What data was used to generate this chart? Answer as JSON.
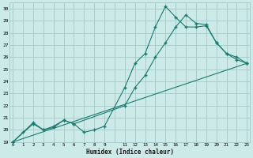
{
  "xlabel": "Humidex (Indice chaleur)",
  "bg_color": "#cceae8",
  "grid_color": "#aacccc",
  "line_color": "#1a7a6e",
  "series": [
    {
      "x": [
        0,
        1,
        2,
        3,
        4,
        5,
        6,
        7,
        8,
        9,
        11,
        12,
        13,
        14,
        15,
        16,
        17,
        18,
        19,
        20,
        21,
        22,
        23
      ],
      "y": [
        19,
        19.8,
        20.6,
        20.0,
        20.2,
        20.8,
        20.5,
        19.8,
        20.0,
        20.3,
        23.5,
        25.5,
        26.3,
        28.5,
        30.2,
        29.3,
        28.5,
        28.5,
        28.6,
        27.2,
        26.3,
        25.8,
        25.5
      ]
    },
    {
      "x": [
        0,
        2,
        3,
        4,
        5,
        6,
        11,
        12,
        13,
        14,
        15,
        16,
        17,
        18,
        19,
        20,
        21,
        22,
        23
      ],
      "y": [
        19,
        20.5,
        20.0,
        20.3,
        20.8,
        20.5,
        22.0,
        23.5,
        24.5,
        26.0,
        27.2,
        28.5,
        29.5,
        28.8,
        28.7,
        27.2,
        26.3,
        26.0,
        25.5
      ]
    },
    {
      "x": [
        0,
        23
      ],
      "y": [
        19,
        25.5
      ]
    }
  ],
  "xlim": [
    -0.3,
    23.3
  ],
  "ylim": [
    19,
    30.5
  ],
  "yticks": [
    19,
    20,
    21,
    22,
    23,
    24,
    25,
    26,
    27,
    28,
    29,
    30
  ],
  "xtick_positions": [
    0,
    1,
    2,
    3,
    4,
    5,
    6,
    7,
    8,
    9,
    10,
    11,
    12,
    13,
    14,
    15,
    16,
    17,
    18,
    19,
    20,
    21,
    22,
    23
  ],
  "xtick_labels": [
    "0",
    "1",
    "2",
    "3",
    "4",
    "5",
    "6",
    "7",
    "8",
    "9",
    "",
    "11",
    "12",
    "13",
    "14",
    "15",
    "16",
    "17",
    "18",
    "19",
    "20",
    "21",
    "22",
    "23"
  ]
}
